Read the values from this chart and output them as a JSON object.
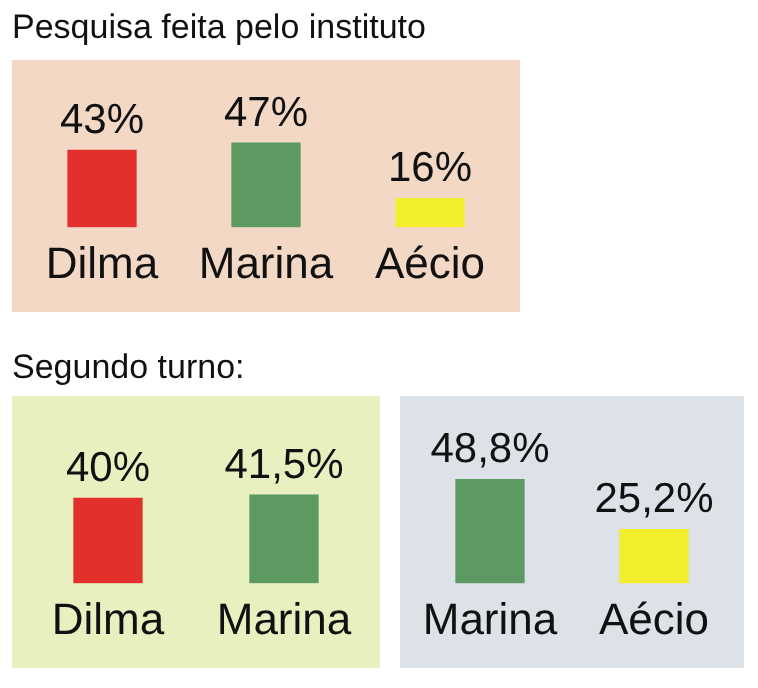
{
  "chart_data": [
    {
      "type": "bar",
      "title": "Pesquisa feita pelo instituto",
      "categories": [
        "Dilma",
        "Marina",
        "Aécio"
      ],
      "values": [
        43,
        47,
        16
      ],
      "colors": [
        "#e2312d",
        "#5d9a62",
        "#f2ee2e"
      ],
      "value_labels": [
        "43%",
        "47%",
        "16%"
      ]
    },
    {
      "type": "bar",
      "title": "Segundo turno:",
      "categories": [
        "Dilma",
        "Marina"
      ],
      "values": [
        40,
        41.5
      ],
      "colors": [
        "#e2312d",
        "#5d9a62"
      ],
      "value_labels": [
        "40%",
        "41,5%"
      ]
    },
    {
      "type": "bar",
      "categories": [
        "Marina",
        "Aécio"
      ],
      "values": [
        48.8,
        25.2
      ],
      "colors": [
        "#5d9a62",
        "#f2ee2e"
      ],
      "value_labels": [
        "48,8%",
        "25,2%"
      ]
    }
  ]
}
